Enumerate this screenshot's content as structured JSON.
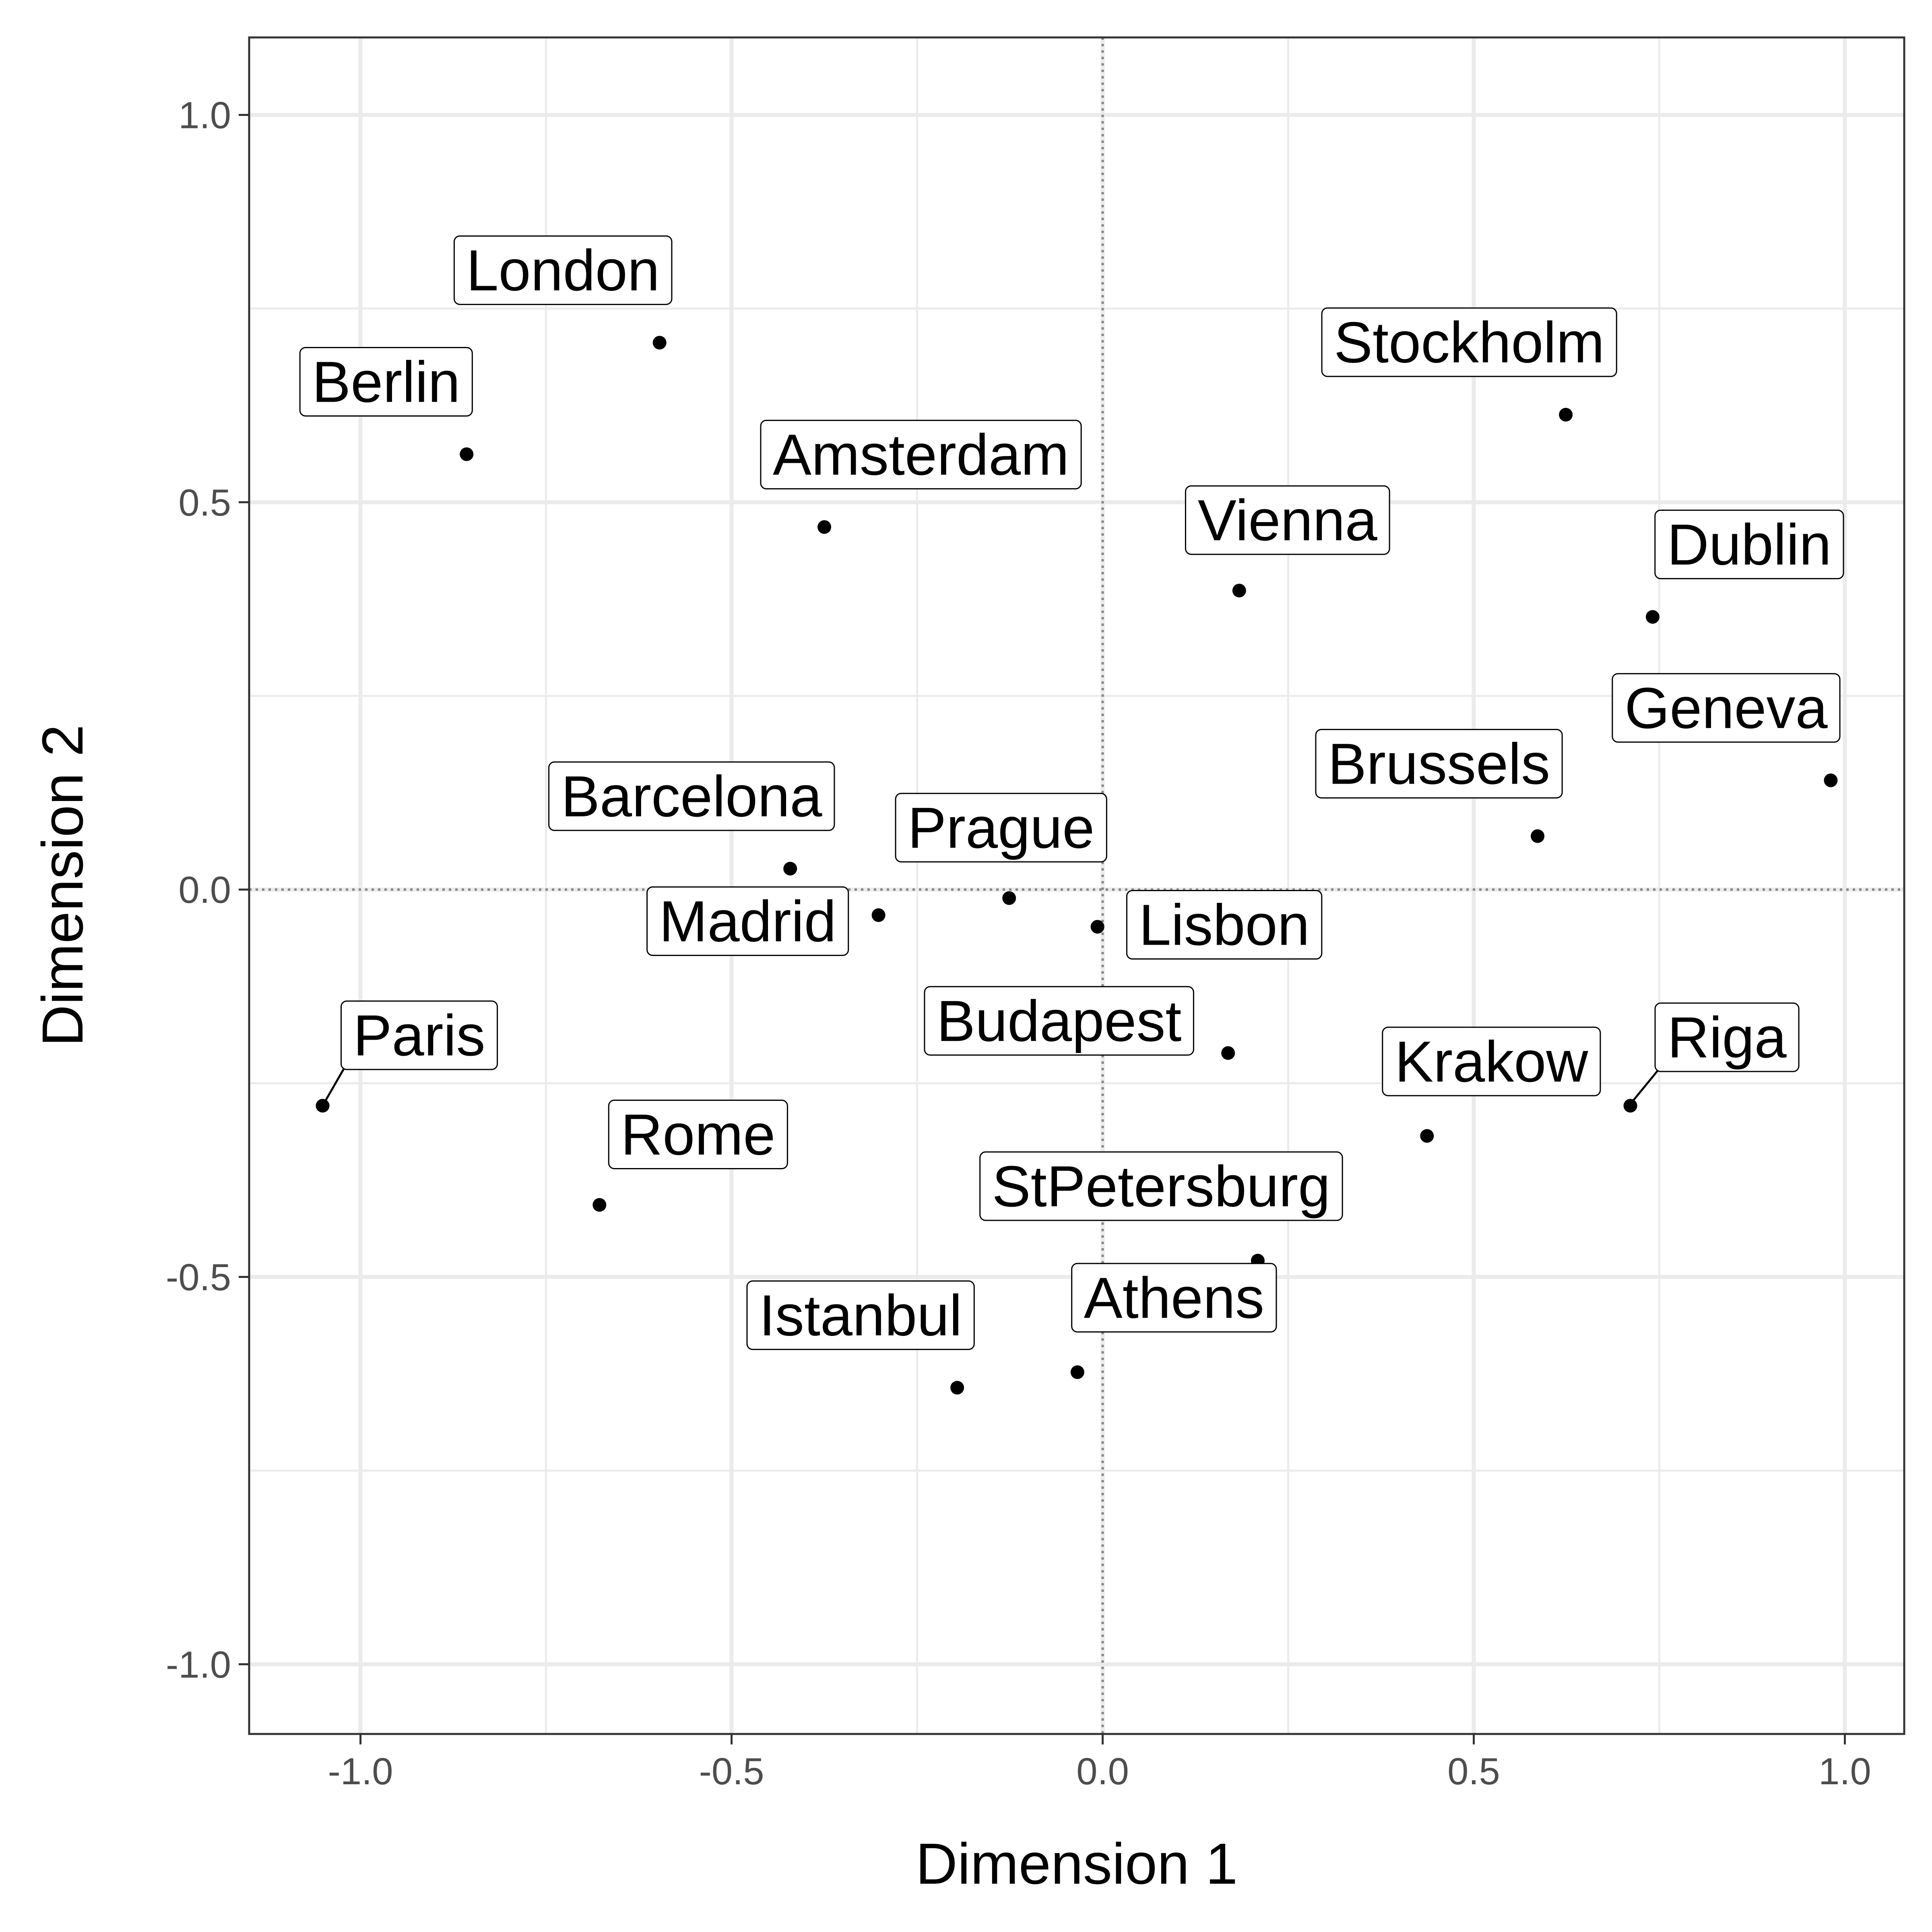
{
  "chart_data": {
    "type": "scatter",
    "title": "",
    "xlabel": "Dimension 1",
    "ylabel": "Dimension 2",
    "xlim": [
      -1.15,
      1.08
    ],
    "ylim": [
      -1.09,
      1.1
    ],
    "xticks": [
      -1.0,
      -0.5,
      0.0,
      0.5,
      1.0
    ],
    "yticks": [
      -1.0,
      -0.5,
      0.0,
      0.5,
      1.0
    ],
    "xtick_labels": [
      "-1.0",
      "-0.5",
      "0.0",
      "0.5",
      "1.0"
    ],
    "ytick_labels": [
      "-1.0",
      "-0.5",
      "0.0",
      "0.5",
      "1.0"
    ],
    "grid": true,
    "reference_lines": {
      "x": 0,
      "y": 0,
      "style": "dotted"
    },
    "points": [
      {
        "label": "London",
        "x": -0.597,
        "y": 0.706
      },
      {
        "label": "Berlin",
        "x": -0.857,
        "y": 0.562
      },
      {
        "label": "Amsterdam",
        "x": -0.375,
        "y": 0.468
      },
      {
        "label": "Stockholm",
        "x": 0.624,
        "y": 0.613
      },
      {
        "label": "Vienna",
        "x": 0.184,
        "y": 0.386
      },
      {
        "label": "Dublin",
        "x": 0.741,
        "y": 0.352
      },
      {
        "label": "Geneva",
        "x": 0.981,
        "y": 0.141
      },
      {
        "label": "Brussels",
        "x": 0.586,
        "y": 0.069
      },
      {
        "label": "Barcelona",
        "x": -0.421,
        "y": 0.027
      },
      {
        "label": "Prague",
        "x": -0.126,
        "y": -0.011
      },
      {
        "label": "Madrid",
        "x": -0.302,
        "y": -0.033
      },
      {
        "label": "Lisbon",
        "x": -0.007,
        "y": -0.048
      },
      {
        "label": "Budapest",
        "x": 0.169,
        "y": -0.211
      },
      {
        "label": "Krakow",
        "x": 0.437,
        "y": -0.318
      },
      {
        "label": "Riga",
        "x": 0.711,
        "y": -0.279
      },
      {
        "label": "Paris",
        "x": -1.051,
        "y": -0.279
      },
      {
        "label": "Rome",
        "x": -0.678,
        "y": -0.407
      },
      {
        "label": "StPetersburg",
        "x": 0.209,
        "y": -0.479
      },
      {
        "label": "Athens",
        "x": -0.034,
        "y": -0.623
      },
      {
        "label": "Istanbul",
        "x": -0.196,
        "y": -0.643
      }
    ]
  }
}
